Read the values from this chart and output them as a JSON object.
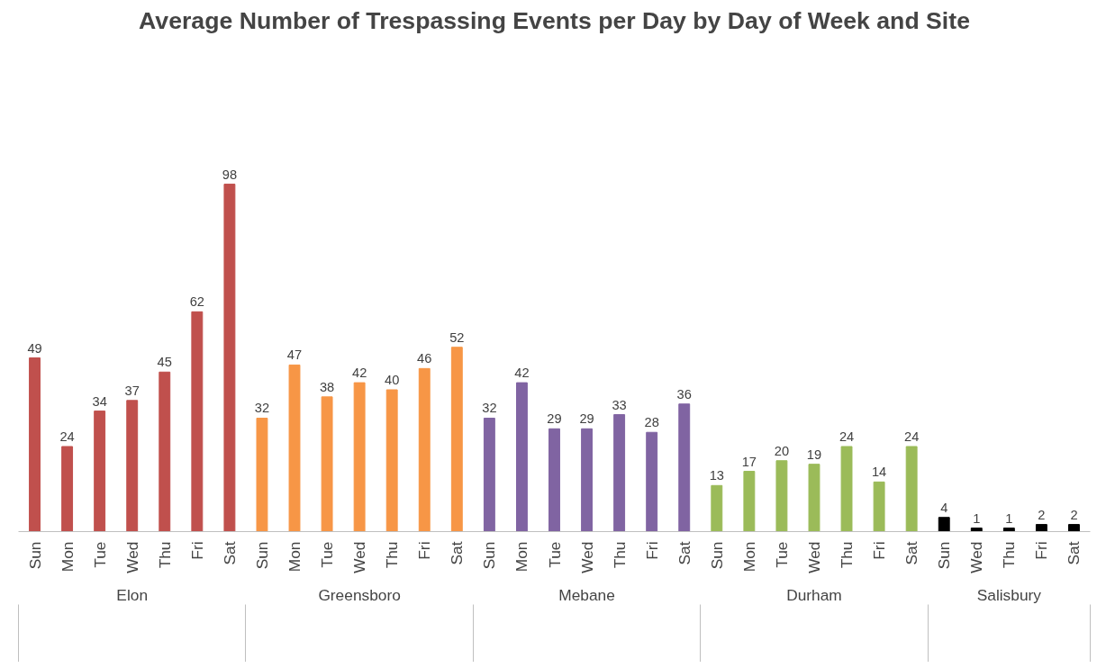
{
  "chart_data": {
    "type": "bar",
    "title": "Average Number of Trespassing Events per Day by Day of Week and Site",
    "categories": [
      "Sun",
      "Mon",
      "Tue",
      "Wed",
      "Thu",
      "Fri",
      "Sat",
      "Sun",
      "Mon",
      "Tue",
      "Wed",
      "Thu",
      "Fri",
      "Sat",
      "Sun",
      "Mon",
      "Tue",
      "Wed",
      "Thu",
      "Fri",
      "Sat",
      "Sun",
      "Mon",
      "Tue",
      "Wed",
      "Thu",
      "Fri",
      "Sat",
      "Sun",
      "Wed",
      "Thu",
      "Fri",
      "Sat"
    ],
    "series": [
      {
        "color": "#c0504d",
        "values": [
          49,
          24,
          34,
          37,
          45,
          62,
          98,
          null,
          null,
          null,
          null,
          null,
          null,
          null,
          null,
          null,
          null,
          null,
          null,
          null,
          null,
          null,
          null,
          null,
          null,
          null,
          null,
          null,
          null,
          null,
          null,
          null,
          null
        ]
      },
      {
        "color": "#f79646",
        "values": [
          null,
          null,
          null,
          null,
          null,
          null,
          null,
          32,
          47,
          38,
          42,
          40,
          46,
          52,
          null,
          null,
          null,
          null,
          null,
          null,
          null,
          null,
          null,
          null,
          null,
          null,
          null,
          null,
          null,
          null,
          null,
          null,
          null
        ]
      },
      {
        "color": "#8064a2",
        "values": [
          null,
          null,
          null,
          null,
          null,
          null,
          null,
          null,
          null,
          null,
          null,
          null,
          null,
          null,
          32,
          42,
          29,
          29,
          33,
          28,
          36,
          null,
          null,
          null,
          null,
          null,
          null,
          null,
          null,
          null,
          null,
          null,
          null
        ]
      },
      {
        "color": "#9bbb59",
        "values": [
          null,
          null,
          null,
          null,
          null,
          null,
          null,
          null,
          null,
          null,
          null,
          null,
          null,
          null,
          null,
          null,
          null,
          null,
          null,
          null,
          null,
          13,
          17,
          20,
          19,
          24,
          14,
          24,
          null,
          null,
          null,
          null,
          null
        ]
      },
      {
        "color": "#000000",
        "values": [
          null,
          null,
          null,
          null,
          null,
          null,
          null,
          null,
          null,
          null,
          null,
          null,
          null,
          null,
          null,
          null,
          null,
          null,
          null,
          null,
          null,
          null,
          null,
          null,
          null,
          null,
          null,
          null,
          4,
          1,
          1,
          2,
          2
        ]
      }
    ],
    "annotations": [
      "Elon",
      "Greensboro",
      "Mebane",
      "Durham",
      "Salisbury"
    ],
    "data_labels": true,
    "grid": false
  }
}
